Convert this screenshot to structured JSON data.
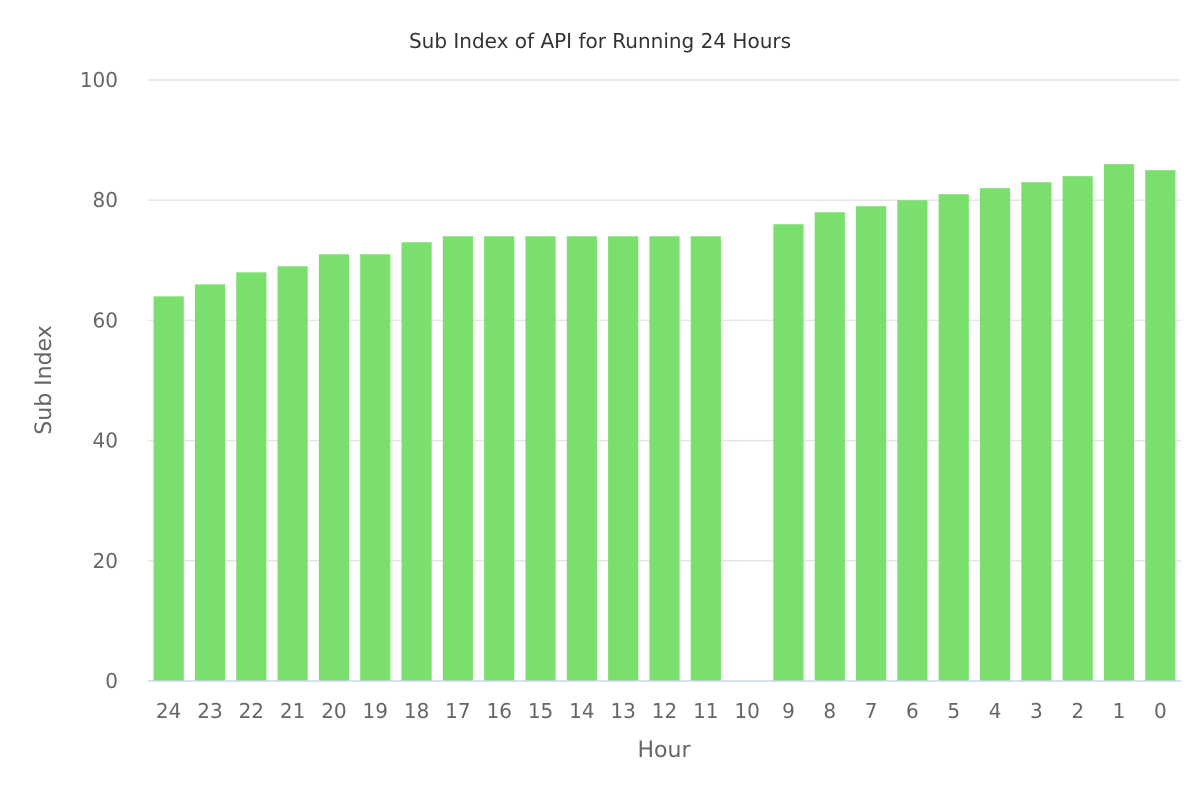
{
  "chart_data": {
    "type": "bar",
    "title": "Sub Index of API for Running 24 Hours",
    "xlabel": "Hour",
    "ylabel": "Sub Index",
    "categories": [
      "24",
      "23",
      "22",
      "21",
      "20",
      "19",
      "18",
      "17",
      "16",
      "15",
      "14",
      "13",
      "12",
      "11",
      "10",
      "9",
      "8",
      "7",
      "6",
      "5",
      "4",
      "3",
      "2",
      "1",
      "0"
    ],
    "values": [
      64,
      66,
      68,
      69,
      71,
      71,
      73,
      74,
      74,
      74,
      74,
      74,
      74,
      74,
      null,
      76,
      78,
      79,
      80,
      81,
      82,
      83,
      84,
      86,
      85
    ],
    "ylim": [
      0,
      100
    ],
    "yticks": [
      "0",
      "20",
      "40",
      "60",
      "80",
      "100"
    ],
    "grid": true,
    "legend": "none",
    "bar_color": "#7bdf6e",
    "grid_color": "#e6e6e6",
    "text_color": "#666666"
  }
}
